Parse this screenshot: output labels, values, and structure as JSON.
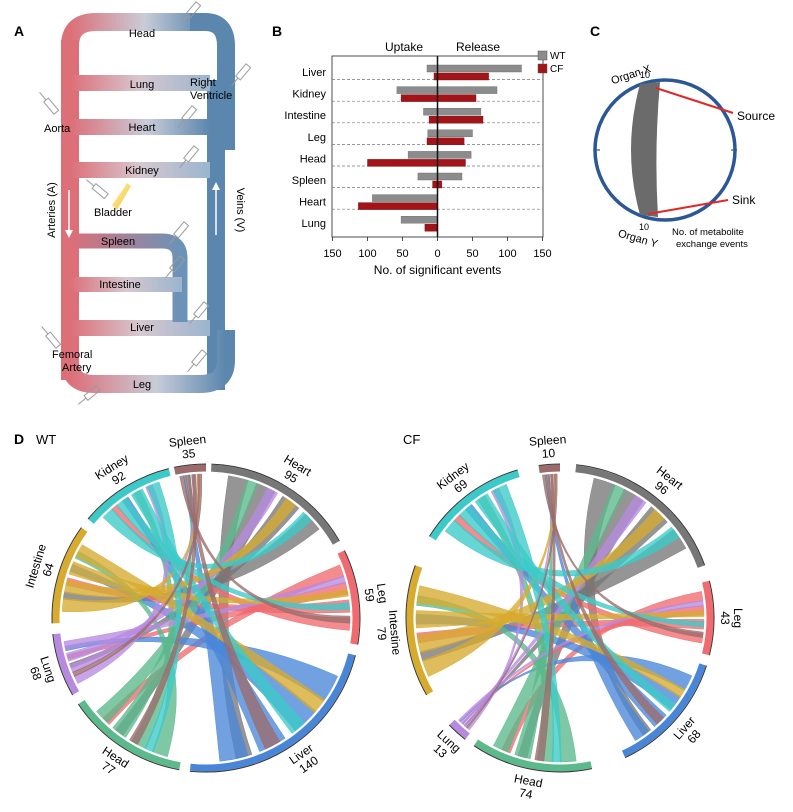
{
  "panels": {
    "a": "A",
    "b": "B",
    "c": "C",
    "d": "D"
  },
  "panel_a": {
    "organs": [
      "Head",
      "Lung",
      "Heart",
      "Kidney",
      "Spleen",
      "Intestine",
      "Liver",
      "Leg"
    ],
    "aorta": "Aorta",
    "bladder": "Bladder",
    "right_ventricle_line1": "Right",
    "right_ventricle_line2": "Ventricle",
    "arteries": "Arteries (A)",
    "veins": "Veins (V)",
    "femoral_line1": "Femoral",
    "femoral_line2": "Artery",
    "colors": {
      "artery": "#dc6f78",
      "vein": "#5b86ad",
      "bladder": "#f2c232"
    }
  },
  "chart_data": {
    "type": "bar",
    "title": "",
    "xlabel": "No. of significant events",
    "left_header": "Uptake",
    "right_header": "Release",
    "categories": [
      "Liver",
      "Kidney",
      "Intestine",
      "Leg",
      "Head",
      "Spleen",
      "Heart",
      "Lung"
    ],
    "xlim": [
      -150,
      150
    ],
    "ticks": [
      150,
      100,
      50,
      0,
      50,
      100,
      150
    ],
    "series": [
      {
        "name": "WT",
        "color": "#8c8c8c",
        "uptake": [
          15,
          58,
          20,
          14,
          42,
          28,
          93,
          52
        ],
        "release": [
          120,
          85,
          62,
          50,
          48,
          35,
          0,
          0
        ]
      },
      {
        "name": "CF",
        "color": "#a31419",
        "uptake": [
          5,
          52,
          12,
          15,
          100,
          7,
          113,
          18
        ],
        "release": [
          73,
          55,
          65,
          38,
          40,
          6,
          0,
          0
        ]
      }
    ]
  },
  "panel_c": {
    "organ_x": "Organ X",
    "organ_y": "Organ Y",
    "tick_x": "10",
    "tick_y": "10",
    "source": "Source",
    "sink": "Sink",
    "caption_line1": "No. of metabolite",
    "caption_line2": "exchange events",
    "colors": {
      "circle": "#2b5797",
      "chord": "#6b6b6b",
      "pointer": "#e0272a"
    }
  },
  "panel_d": {
    "wt": {
      "label": "WT",
      "segments": [
        {
          "name": "Heart",
          "value": "95",
          "color": "#777777"
        },
        {
          "name": "Leg",
          "value": "59",
          "color": "#f06a6f"
        },
        {
          "name": "Liver",
          "value": "140",
          "color": "#4a86d8"
        },
        {
          "name": "Head",
          "value": "77",
          "color": "#5bb98c"
        },
        {
          "name": "Lung",
          "value": "68",
          "color": "#b78ae0"
        },
        {
          "name": "Intestine",
          "value": "64",
          "color": "#d7ab2e"
        },
        {
          "name": "Kidney",
          "value": "92",
          "color": "#3bcac8"
        },
        {
          "name": "Spleen",
          "value": "35",
          "color": "#9b6b6b"
        }
      ]
    },
    "cf": {
      "label": "CF",
      "segments": [
        {
          "name": "Heart",
          "value": "96",
          "color": "#777777"
        },
        {
          "name": "Leg",
          "value": "43",
          "color": "#f06a6f"
        },
        {
          "name": "Liver",
          "value": "68",
          "color": "#4a86d8"
        },
        {
          "name": "Head",
          "value": "74",
          "color": "#5bb98c"
        },
        {
          "name": "Lung",
          "value": "13",
          "color": "#b78ae0"
        },
        {
          "name": "Intestine",
          "value": "79",
          "color": "#d7ab2e"
        },
        {
          "name": "Kidney",
          "value": "69",
          "color": "#3bcac8"
        },
        {
          "name": "Spleen",
          "value": "10",
          "color": "#9b6b6b"
        }
      ]
    }
  }
}
